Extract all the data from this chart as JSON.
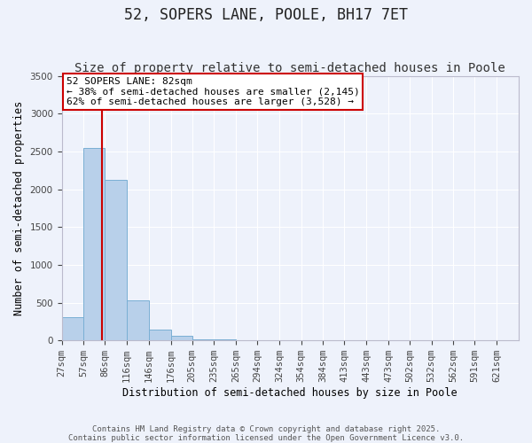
{
  "title": "52, SOPERS LANE, POOLE, BH17 7ET",
  "subtitle": "Size of property relative to semi-detached houses in Poole",
  "xlabel": "Distribution of semi-detached houses by size in Poole",
  "ylabel": "Number of semi-detached properties",
  "bin_labels": [
    "27sqm",
    "57sqm",
    "86sqm",
    "116sqm",
    "146sqm",
    "176sqm",
    "205sqm",
    "235sqm",
    "265sqm",
    "294sqm",
    "324sqm",
    "354sqm",
    "384sqm",
    "413sqm",
    "443sqm",
    "473sqm",
    "502sqm",
    "532sqm",
    "562sqm",
    "591sqm",
    "621sqm"
  ],
  "bin_edges": [
    27,
    57,
    86,
    116,
    146,
    176,
    205,
    235,
    265,
    294,
    324,
    354,
    384,
    413,
    443,
    473,
    502,
    532,
    562,
    591,
    621,
    651
  ],
  "bar_values": [
    305,
    2550,
    2130,
    530,
    140,
    60,
    20,
    10,
    5,
    3,
    2,
    1,
    1,
    0,
    0,
    0,
    0,
    0,
    0,
    0,
    0
  ],
  "bar_color": "#b8d0ea",
  "bar_edge_color": "#7aafd4",
  "red_line_x": 82,
  "annotation_line1": "52 SOPERS LANE: 82sqm",
  "annotation_line2": "← 38% of semi-detached houses are smaller (2,145)",
  "annotation_line3": "62% of semi-detached houses are larger (3,528) →",
  "annotation_box_color": "#ffffff",
  "annotation_box_edge": "#cc0000",
  "red_line_color": "#cc0000",
  "ylim": [
    0,
    3500
  ],
  "yticks": [
    0,
    500,
    1000,
    1500,
    2000,
    2500,
    3000,
    3500
  ],
  "footer_line1": "Contains HM Land Registry data © Crown copyright and database right 2025.",
  "footer_line2": "Contains public sector information licensed under the Open Government Licence v3.0.",
  "bg_color": "#eef2fb",
  "grid_color": "#ffffff",
  "title_fontsize": 12,
  "subtitle_fontsize": 10,
  "axis_label_fontsize": 8.5,
  "tick_fontsize": 7.5,
  "annotation_fontsize": 8,
  "footer_fontsize": 6.5
}
